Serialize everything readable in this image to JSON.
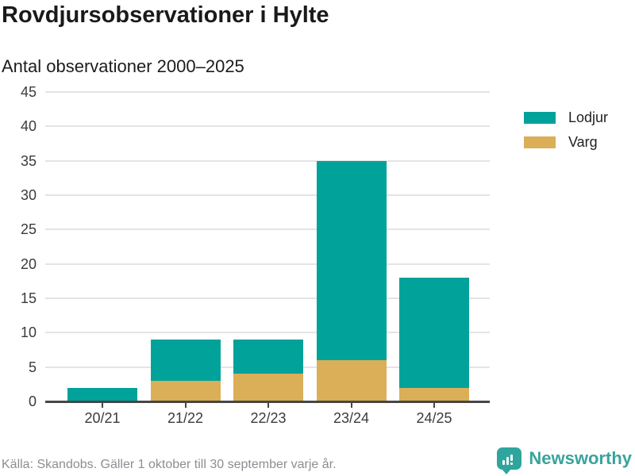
{
  "header": {
    "title": "Rovdjursobservationer i Hylte",
    "subtitle": "Antal observationer 2000–2025"
  },
  "chart_data": {
    "type": "bar",
    "stacked": true,
    "title": "Rovdjursobservationer i Hylte",
    "subtitle": "Antal observationer 2000–2025",
    "categories": [
      "20/21",
      "21/22",
      "22/23",
      "23/24",
      "24/25"
    ],
    "series": [
      {
        "name": "Lodjur",
        "color": "#00a29a",
        "values": [
          2,
          6,
          5,
          29,
          16
        ]
      },
      {
        "name": "Varg",
        "color": "#dbae58",
        "values": [
          0,
          3,
          4,
          6,
          2
        ]
      }
    ],
    "stack_bottom_to_top": [
      "Varg",
      "Lodjur"
    ],
    "stacked_totals": [
      2,
      9,
      9,
      35,
      18
    ],
    "xlabel": "",
    "ylabel": "",
    "ylim": [
      0,
      45
    ],
    "yticks": [
      0,
      5,
      10,
      15,
      20,
      25,
      30,
      35,
      40,
      45
    ],
    "grid": "horizontal",
    "legend_position": "right-top"
  },
  "legend": {
    "items": [
      {
        "label": "Lodjur",
        "color": "#00a29a"
      },
      {
        "label": "Varg",
        "color": "#dbae58"
      }
    ]
  },
  "footer": {
    "source": "Källa: Skandobs. Gäller 1 oktober till 30 september varje år.",
    "branding": {
      "name": "Newsworthy",
      "color": "#3aa39c",
      "icon": "newsworthy-chart-bubble-icon"
    }
  }
}
